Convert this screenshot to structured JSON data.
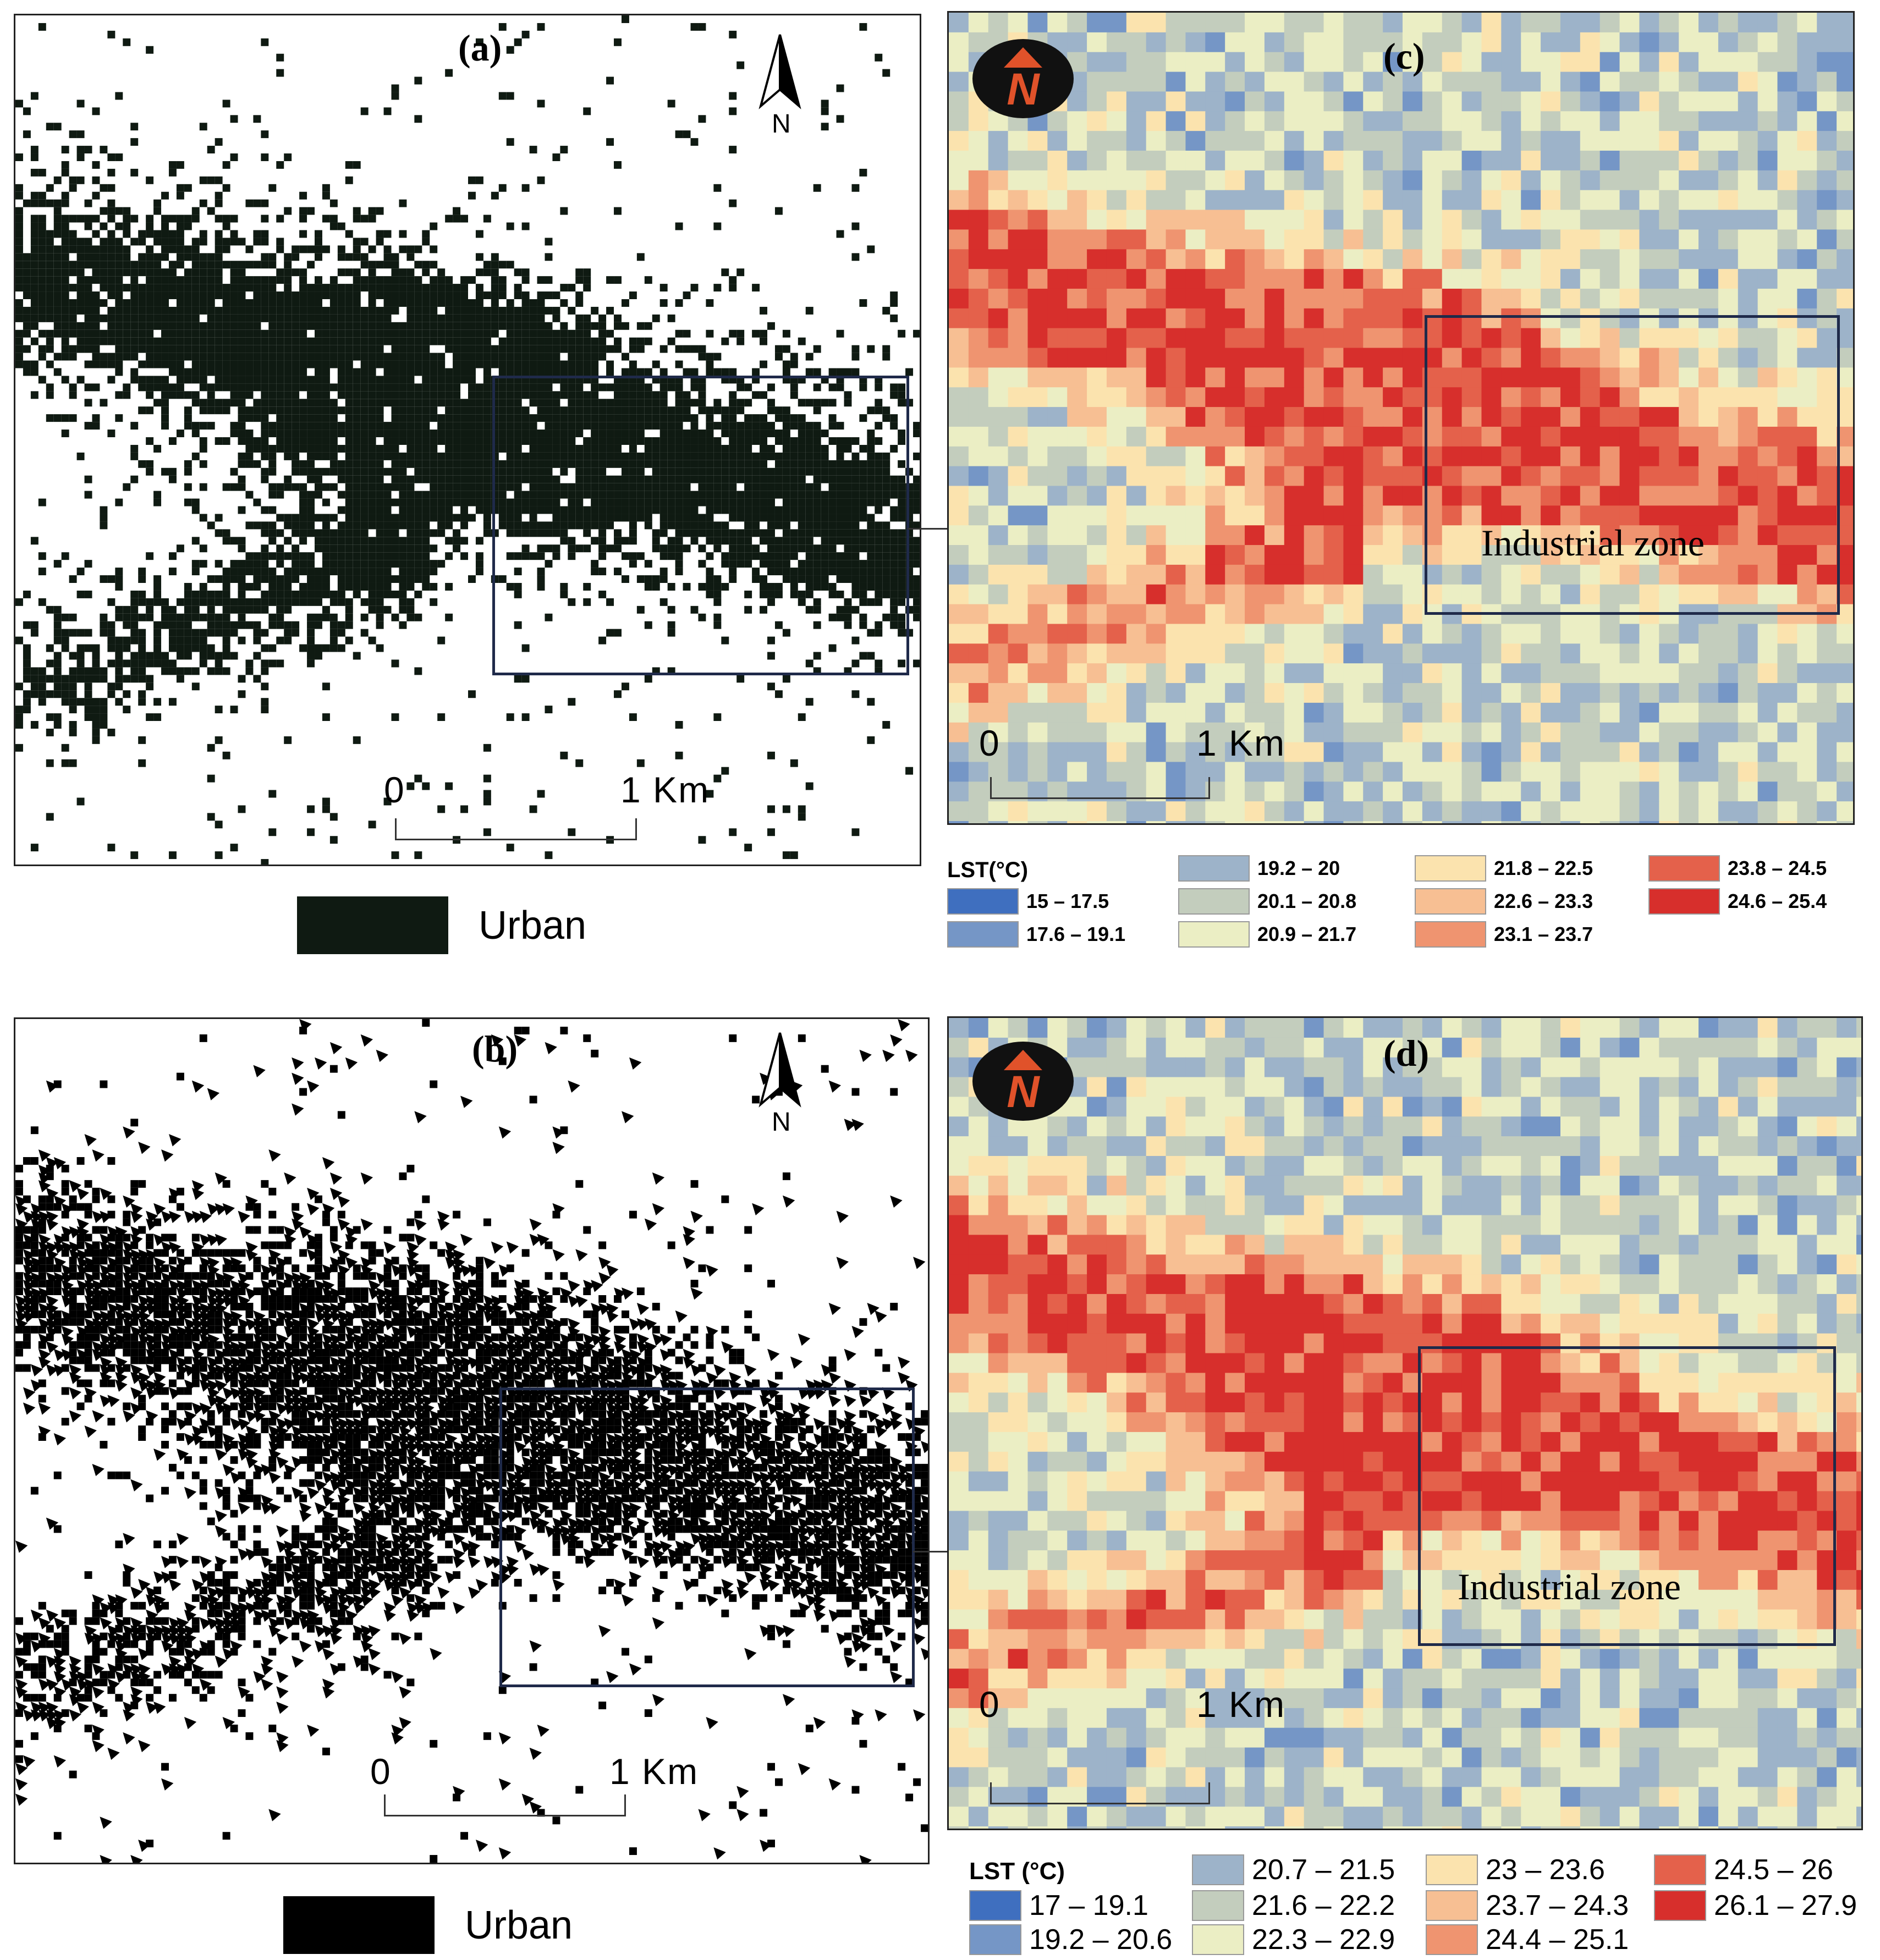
{
  "panel_a": {
    "label": "(a)",
    "north": "N",
    "scale_start": "0",
    "scale_end": "1 Km"
  },
  "panel_b": {
    "label": "(b)",
    "north": "N",
    "scale_start": "0",
    "scale_end": "1 Km"
  },
  "panel_c": {
    "label": "(c)",
    "zone_label": "Industrial zone",
    "scale_start": "0",
    "scale_end": "1 Km",
    "north_letter": "N"
  },
  "panel_d": {
    "label": "(d)",
    "zone_label": "Industrial zone",
    "scale_start": "0",
    "scale_end": "1 Km",
    "north_letter": "N"
  },
  "urban_legend_top": {
    "label": "Urban"
  },
  "urban_legend_bottom": {
    "label": "Urban"
  },
  "legend_c": {
    "title": "LST(°C)",
    "classes": [
      {
        "label": "15 – 17.5",
        "color": "#3f6fbf"
      },
      {
        "label": "17.6 – 19.1",
        "color": "#7596c6"
      },
      {
        "label": "19.2 – 20",
        "color": "#9db3c9"
      },
      {
        "label": "20.1 – 20.8",
        "color": "#c3cdbd"
      },
      {
        "label": "20.9 – 21.7",
        "color": "#ebeec4"
      },
      {
        "label": "21.8 – 22.5",
        "color": "#fbe3ae"
      },
      {
        "label": "22.6 – 23.3",
        "color": "#f7bf93"
      },
      {
        "label": "23.1 – 23.7",
        "color": "#ef9470"
      },
      {
        "label": "23.8 – 24.5",
        "color": "#e4614b"
      },
      {
        "label": "24.6 – 25.4",
        "color": "#d72f2c"
      }
    ]
  },
  "legend_d": {
    "title": "LST (°C)",
    "classes": [
      {
        "label": "17 – 19.1",
        "color": "#3f6fbf"
      },
      {
        "label": "19.2 – 20.6",
        "color": "#7596c6"
      },
      {
        "label": "20.7 – 21.5",
        "color": "#9db3c9"
      },
      {
        "label": "21.6 – 22.2",
        "color": "#c3cdbd"
      },
      {
        "label": "22.3 – 22.9",
        "color": "#ebeec4"
      },
      {
        "label": "23 – 23.6",
        "color": "#fbe3ae"
      },
      {
        "label": "23.7 – 24.3",
        "color": "#f7bf93"
      },
      {
        "label": "24.4 – 25.1",
        "color": "#ef9470"
      },
      {
        "label": "24.5 – 26",
        "color": "#e4614b"
      },
      {
        "label": "26.1 – 27.9",
        "color": "#d72f2c"
      }
    ]
  }
}
